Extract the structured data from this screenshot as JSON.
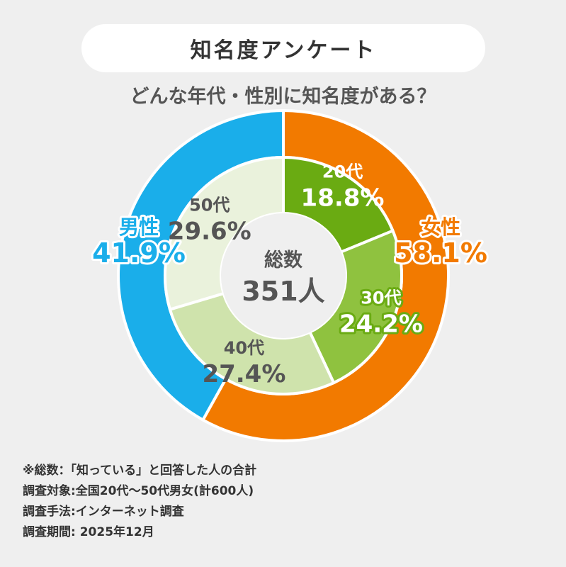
{
  "header": {
    "title": "知名度アンケート"
  },
  "subtitle": "どんな年代・性別に知名度がある？",
  "center": {
    "label": "総数",
    "value": "351人"
  },
  "chart_data": [
    {
      "type": "pie",
      "ring": "outer",
      "categories": [
        "女性",
        "男性"
      ],
      "values": [
        58.1,
        41.9
      ],
      "labels": [
        "58.1%",
        "41.9%"
      ],
      "colors": [
        "#f27a00",
        "#1aaeea"
      ]
    },
    {
      "type": "pie",
      "ring": "inner",
      "categories": [
        "20代",
        "30代",
        "40代",
        "50代"
      ],
      "values": [
        18.8,
        24.2,
        27.4,
        29.6
      ],
      "labels": [
        "18.8%",
        "24.2%",
        "27.4%",
        "29.6%"
      ],
      "colors": [
        "#6aab12",
        "#8fc23f",
        "#cfe3ac",
        "#eaf2dc"
      ]
    }
  ],
  "notes": [
    "※総数：「知っている」と回答した人の合計",
    "調査対象:全国20代～50代男女(計600人)",
    "調査手法:インターネット調査",
    "調査期間: 2025年12月"
  ]
}
